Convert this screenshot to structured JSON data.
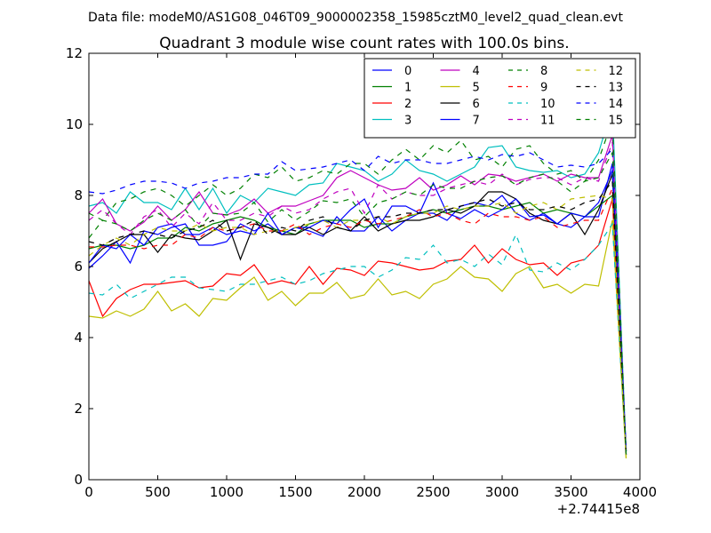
{
  "suptitle": "Data file: modeM0/AS1G08_046T09_9000002358_15985cztM0_level2_quad_clean.evt",
  "chart_data": {
    "type": "line",
    "title": "Quadrant 3 module wise count rates with 100.0s bins.",
    "xlabel": "",
    "ylabel": "",
    "x_offset_label": "+2.74415e8",
    "xlim": [
      0,
      4000
    ],
    "ylim": [
      0,
      12
    ],
    "xticks": [
      0,
      500,
      1000,
      1500,
      2000,
      2500,
      3000,
      3500,
      4000
    ],
    "xtick_labels": [
      "0",
      "500",
      "1000",
      "1500",
      "2000",
      "2500",
      "3000",
      "3500",
      "4000"
    ],
    "yticks": [
      0,
      2,
      4,
      6,
      8,
      10,
      12
    ],
    "ytick_labels": [
      "0",
      "2",
      "4",
      "6",
      "8",
      "10",
      "12"
    ],
    "grid": false,
    "legend_position": "top-right",
    "x": [
      0,
      100,
      200,
      300,
      400,
      500,
      600,
      700,
      800,
      900,
      1000,
      1100,
      1200,
      1300,
      1400,
      1500,
      1600,
      1700,
      1800,
      1900,
      2000,
      2100,
      2200,
      2300,
      2400,
      2500,
      2600,
      2700,
      2800,
      2900,
      3000,
      3100,
      3200,
      3300,
      3400,
      3500,
      3600,
      3700,
      3800,
      3900
    ],
    "series": [
      {
        "name": "0",
        "color": "#0000ff",
        "dash": "solid",
        "values": [
          5.95,
          6.3,
          6.7,
          6.1,
          7.0,
          6.9,
          7.1,
          7.2,
          6.6,
          6.6,
          6.7,
          7.2,
          7.0,
          7.2,
          6.9,
          7.1,
          7.0,
          6.85,
          7.4,
          7.0,
          7.0,
          7.4,
          7.0,
          7.3,
          7.5,
          7.5,
          7.3,
          7.7,
          7.8,
          7.7,
          8.0,
          7.5,
          7.3,
          7.5,
          7.2,
          7.1,
          7.4,
          7.4,
          8.9,
          0.8
        ]
      },
      {
        "name": "1",
        "color": "#008000",
        "dash": "solid",
        "values": [
          6.5,
          6.6,
          6.6,
          6.5,
          6.6,
          6.8,
          6.8,
          7.1,
          7.0,
          7.2,
          7.3,
          7.4,
          7.3,
          7.1,
          7.0,
          6.9,
          7.2,
          7.3,
          7.3,
          7.3,
          7.1,
          7.2,
          7.2,
          7.4,
          7.5,
          7.6,
          7.5,
          7.6,
          7.7,
          7.7,
          7.6,
          7.7,
          7.8,
          7.5,
          7.6,
          7.5,
          7.4,
          7.7,
          8.0,
          0.7
        ]
      },
      {
        "name": "2",
        "color": "#ff0000",
        "dash": "solid",
        "values": [
          5.6,
          4.6,
          5.1,
          5.35,
          5.5,
          5.5,
          5.55,
          5.6,
          5.4,
          5.45,
          5.8,
          5.75,
          6.05,
          5.5,
          5.6,
          5.5,
          6.0,
          5.5,
          5.95,
          5.9,
          5.75,
          6.15,
          6.1,
          6.0,
          5.9,
          5.95,
          6.15,
          6.2,
          6.6,
          6.1,
          6.5,
          6.2,
          6.05,
          6.1,
          5.75,
          6.1,
          6.2,
          6.6,
          7.9,
          0.7
        ]
      },
      {
        "name": "3",
        "color": "#00bfbf",
        "dash": "solid",
        "values": [
          7.7,
          7.8,
          7.5,
          8.1,
          7.8,
          7.8,
          7.6,
          8.2,
          7.6,
          8.2,
          7.5,
          8.0,
          7.8,
          8.2,
          8.1,
          8.0,
          8.3,
          8.35,
          8.9,
          8.8,
          8.7,
          8.4,
          8.6,
          9.0,
          8.7,
          8.6,
          8.4,
          8.6,
          8.8,
          9.35,
          9.4,
          8.8,
          8.7,
          8.65,
          8.7,
          8.5,
          8.6,
          9.2,
          10.5,
          0.7
        ]
      },
      {
        "name": "4",
        "color": "#bf00bf",
        "dash": "solid",
        "values": [
          7.5,
          7.9,
          7.2,
          7.0,
          7.25,
          7.7,
          7.3,
          7.6,
          8.1,
          7.5,
          7.45,
          7.6,
          7.9,
          7.5,
          7.7,
          7.7,
          7.85,
          8.0,
          8.5,
          8.7,
          8.5,
          8.3,
          8.15,
          8.2,
          8.5,
          8.15,
          8.3,
          8.55,
          8.3,
          8.6,
          8.55,
          8.4,
          8.5,
          8.6,
          8.4,
          8.6,
          8.5,
          8.5,
          9.7,
          0.7
        ]
      },
      {
        "name": "5",
        "color": "#bfbf00",
        "dash": "solid",
        "values": [
          4.6,
          4.55,
          4.75,
          4.6,
          4.8,
          5.3,
          4.75,
          4.95,
          4.6,
          5.1,
          5.05,
          5.4,
          5.7,
          5.05,
          5.3,
          4.9,
          5.25,
          5.25,
          5.55,
          5.1,
          5.2,
          5.65,
          5.2,
          5.3,
          5.1,
          5.5,
          5.65,
          6.0,
          5.7,
          5.65,
          5.3,
          5.8,
          6.0,
          5.4,
          5.5,
          5.25,
          5.5,
          5.45,
          7.3,
          0.6
        ]
      },
      {
        "name": "6",
        "color": "#000000",
        "dash": "solid",
        "values": [
          6.1,
          6.5,
          6.7,
          6.9,
          6.9,
          6.4,
          6.9,
          6.8,
          6.75,
          7.0,
          7.3,
          6.2,
          7.2,
          7.1,
          6.9,
          6.9,
          7.1,
          6.9,
          7.1,
          7.0,
          7.4,
          7.0,
          7.2,
          7.3,
          7.3,
          7.4,
          7.6,
          7.5,
          7.7,
          8.1,
          8.1,
          7.9,
          7.5,
          7.3,
          7.2,
          7.5,
          6.9,
          7.6,
          8.6,
          0.8
        ]
      },
      {
        "name": "7",
        "color": "#0000ff",
        "dash": "solid",
        "values": [
          6.1,
          6.6,
          6.5,
          6.9,
          6.6,
          7.1,
          7.2,
          6.9,
          6.9,
          7.1,
          6.9,
          7.0,
          6.9,
          7.5,
          6.9,
          7.1,
          7.1,
          7.3,
          7.2,
          7.6,
          7.9,
          7.1,
          7.7,
          7.7,
          7.5,
          8.35,
          7.5,
          7.35,
          7.6,
          7.4,
          7.6,
          7.9,
          7.4,
          7.45,
          7.2,
          7.5,
          7.4,
          7.8,
          8.7,
          0.8
        ]
      },
      {
        "name": "8",
        "color": "#008000",
        "dash": "dashed",
        "values": [
          7.5,
          7.3,
          7.8,
          7.9,
          8.1,
          8.2,
          8.0,
          7.7,
          8.0,
          8.3,
          8.0,
          8.2,
          8.6,
          8.5,
          8.8,
          8.4,
          8.5,
          8.7,
          8.6,
          8.9,
          8.9,
          8.6,
          9.0,
          9.3,
          9.0,
          9.4,
          9.2,
          9.55,
          9.0,
          9.1,
          8.8,
          9.3,
          9.4,
          8.9,
          8.6,
          8.7,
          8.4,
          9.0,
          10.1,
          0.8
        ]
      },
      {
        "name": "9",
        "color": "#ff0000",
        "dash": "dashed",
        "values": [
          6.55,
          6.55,
          6.6,
          6.6,
          6.5,
          6.6,
          6.6,
          6.9,
          6.8,
          7.1,
          7.0,
          7.1,
          7.2,
          7.0,
          7.0,
          7.2,
          6.9,
          7.1,
          7.2,
          7.1,
          7.3,
          7.2,
          7.3,
          7.4,
          7.6,
          7.4,
          7.5,
          7.3,
          7.2,
          7.5,
          7.4,
          7.4,
          7.3,
          7.4,
          7.1,
          7.2,
          7.3,
          7.3,
          8.2,
          0.7
        ]
      },
      {
        "name": "10",
        "color": "#00bfbf",
        "dash": "dashed",
        "values": [
          5.25,
          5.2,
          5.5,
          5.1,
          5.3,
          5.5,
          5.7,
          5.7,
          5.4,
          5.35,
          5.3,
          5.5,
          5.5,
          5.6,
          5.7,
          5.5,
          5.6,
          5.8,
          5.9,
          6.0,
          6.0,
          5.7,
          5.9,
          6.25,
          6.2,
          6.6,
          6.1,
          6.2,
          6.0,
          6.35,
          6.05,
          6.9,
          5.9,
          5.85,
          6.1,
          5.9,
          6.2,
          6.6,
          7.2,
          0.7
        ]
      },
      {
        "name": "11",
        "color": "#bf00bf",
        "dash": "dashed",
        "values": [
          7.3,
          7.6,
          7.2,
          6.9,
          7.4,
          7.6,
          7.1,
          7.5,
          7.2,
          7.8,
          7.3,
          7.3,
          7.5,
          7.4,
          7.7,
          7.5,
          7.6,
          7.9,
          8.1,
          8.2,
          7.5,
          8.3,
          7.9,
          8.1,
          8.0,
          8.0,
          8.2,
          8.3,
          8.4,
          8.3,
          8.6,
          8.3,
          8.45,
          8.5,
          8.5,
          8.3,
          8.5,
          8.4,
          9.5,
          0.7
        ]
      },
      {
        "name": "12",
        "color": "#bfbf00",
        "dash": "dashed",
        "values": [
          6.3,
          6.6,
          6.8,
          6.6,
          6.9,
          7.1,
          7.0,
          7.0,
          7.2,
          7.0,
          7.1,
          7.1,
          6.9,
          7.0,
          7.0,
          7.1,
          7.2,
          7.3,
          7.1,
          7.3,
          7.3,
          7.4,
          7.2,
          7.4,
          7.5,
          7.5,
          7.7,
          7.6,
          7.7,
          7.7,
          7.8,
          7.5,
          7.7,
          7.8,
          7.6,
          7.9,
          7.95,
          8.0,
          7.9,
          0.6
        ]
      },
      {
        "name": "13",
        "color": "#000000",
        "dash": "dashed",
        "values": [
          6.7,
          6.6,
          6.8,
          6.9,
          7.0,
          6.9,
          6.8,
          7.0,
          7.1,
          7.3,
          7.0,
          7.1,
          7.3,
          6.9,
          7.1,
          7.0,
          7.3,
          7.4,
          7.1,
          7.0,
          7.3,
          7.4,
          7.4,
          7.5,
          7.5,
          7.6,
          7.6,
          7.7,
          7.8,
          7.9,
          7.7,
          7.8,
          7.6,
          7.6,
          7.7,
          7.6,
          7.8,
          7.9,
          8.4,
          0.7
        ]
      },
      {
        "name": "14",
        "color": "#0000ff",
        "dash": "dashed",
        "values": [
          8.1,
          8.05,
          8.15,
          8.3,
          8.4,
          8.4,
          8.35,
          8.2,
          8.35,
          8.4,
          8.5,
          8.5,
          8.6,
          8.6,
          8.95,
          8.7,
          8.75,
          8.8,
          8.9,
          9.0,
          8.7,
          9.1,
          8.9,
          9.0,
          9.0,
          8.9,
          8.9,
          9.0,
          9.1,
          9.0,
          9.15,
          9.1,
          9.2,
          9.0,
          8.8,
          8.85,
          8.8,
          8.9,
          9.3,
          0.8
        ]
      },
      {
        "name": "15",
        "color": "#008000",
        "dash": "dashed",
        "values": [
          6.8,
          7.3,
          7.2,
          7.0,
          7.3,
          7.5,
          7.3,
          7.6,
          7.1,
          7.5,
          7.45,
          7.5,
          7.8,
          7.25,
          7.6,
          7.3,
          7.55,
          7.85,
          7.8,
          7.9,
          7.4,
          7.8,
          7.9,
          8.1,
          8.0,
          8.3,
          8.2,
          8.2,
          8.4,
          8.5,
          8.55,
          8.3,
          8.5,
          8.6,
          8.4,
          8.1,
          8.4,
          8.5,
          9.2,
          0.7
        ]
      }
    ]
  }
}
